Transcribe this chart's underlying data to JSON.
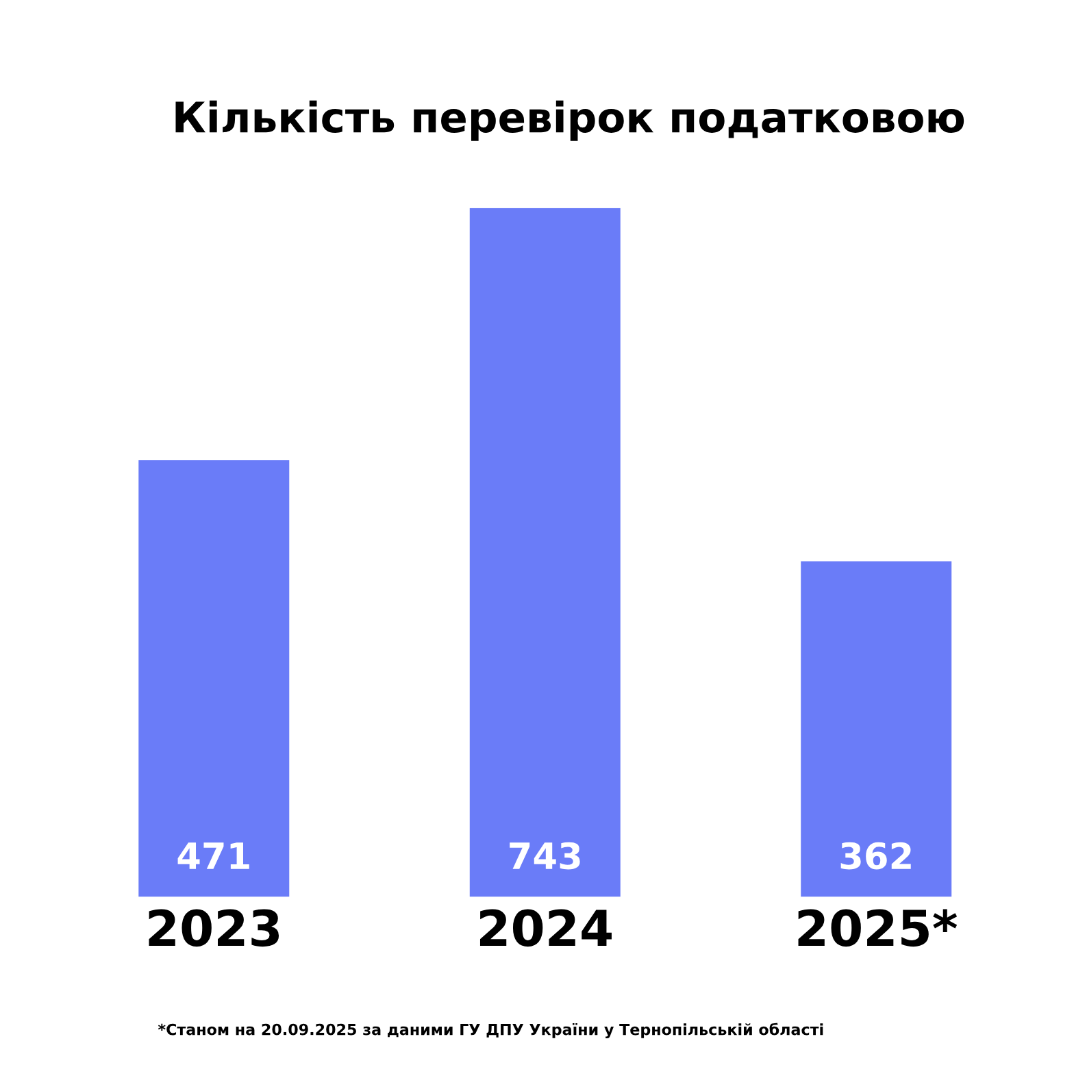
{
  "chart_data": {
    "type": "bar",
    "title": "Кількість перевірок податковою",
    "categories": [
      "2023",
      "2024",
      "2025*"
    ],
    "values": [
      471,
      743,
      362
    ],
    "color": "#6a7cf8",
    "data_labels": true,
    "grid": false,
    "legend": false,
    "annotations": [
      "*Станом на 20.09.2025 за даними ГУ ДПУ України у Тернопільській області"
    ]
  }
}
